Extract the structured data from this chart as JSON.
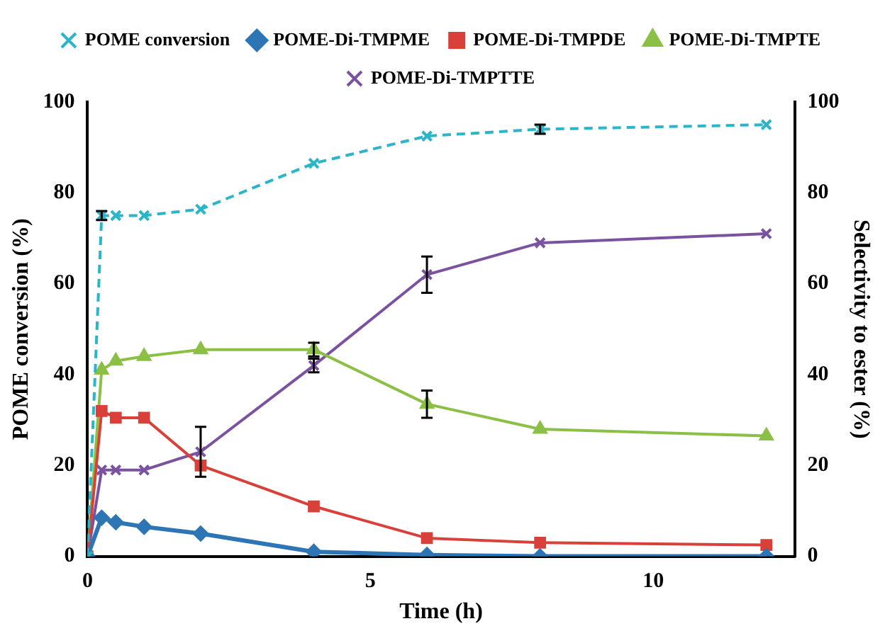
{
  "chart_data": {
    "type": "line",
    "xlabel": "Time (h)",
    "ylabel": "POME conversion (%)",
    "y2label": "Selectivity to ester (%)",
    "x": [
      0,
      0.25,
      0.5,
      1,
      2,
      4,
      6,
      8,
      12
    ],
    "xlim": [
      0,
      12.5
    ],
    "xticks": [
      0,
      5,
      10
    ],
    "ylim": [
      0,
      100
    ],
    "yticks": [
      0,
      20,
      40,
      60,
      80,
      100
    ],
    "y2lim": [
      0,
      100
    ],
    "y2ticks": [
      0,
      20,
      40,
      60,
      80,
      100
    ],
    "grid": false,
    "legend": "top",
    "series": [
      {
        "name": "POME conversion",
        "color": "#2bb5c8",
        "marker": "cross",
        "line_style": "dashed",
        "values": [
          0,
          75,
          75,
          75,
          76.4,
          86.5,
          92.5,
          94,
          95
        ],
        "errors": [
          null,
          1,
          null,
          null,
          null,
          null,
          null,
          1,
          null
        ]
      },
      {
        "name": "POME-Di-TMPME",
        "color": "#2e75b6",
        "marker": "diamond",
        "line_style": "solid",
        "axis": "y2",
        "values": [
          0,
          8.5,
          7.5,
          6.5,
          5,
          1,
          0.3,
          0,
          0
        ]
      },
      {
        "name": "POME-Di-TMPDE",
        "color": "#d9403a",
        "marker": "square",
        "line_style": "solid",
        "axis": "y2",
        "values": [
          0,
          32,
          30.5,
          30.5,
          20,
          11,
          4,
          3,
          2.5
        ]
      },
      {
        "name": "POME-Di-TMPTE",
        "color": "#8cbf45",
        "marker": "triangle",
        "line_style": "solid",
        "axis": "y2",
        "values": [
          0,
          41,
          43,
          44,
          45.5,
          45.5,
          33.5,
          28,
          26.5
        ],
        "errors": [
          null,
          null,
          null,
          null,
          null,
          1.5,
          3,
          null,
          null
        ]
      },
      {
        "name": "POME-Di-TMPTTE",
        "color": "#7a52a0",
        "marker": "cross",
        "line_style": "solid",
        "axis": "y2",
        "values": [
          0,
          19,
          19,
          19,
          23,
          42,
          62,
          69,
          71
        ],
        "errors": [
          null,
          null,
          null,
          null,
          5.5,
          1.5,
          4,
          null,
          null
        ]
      }
    ]
  }
}
